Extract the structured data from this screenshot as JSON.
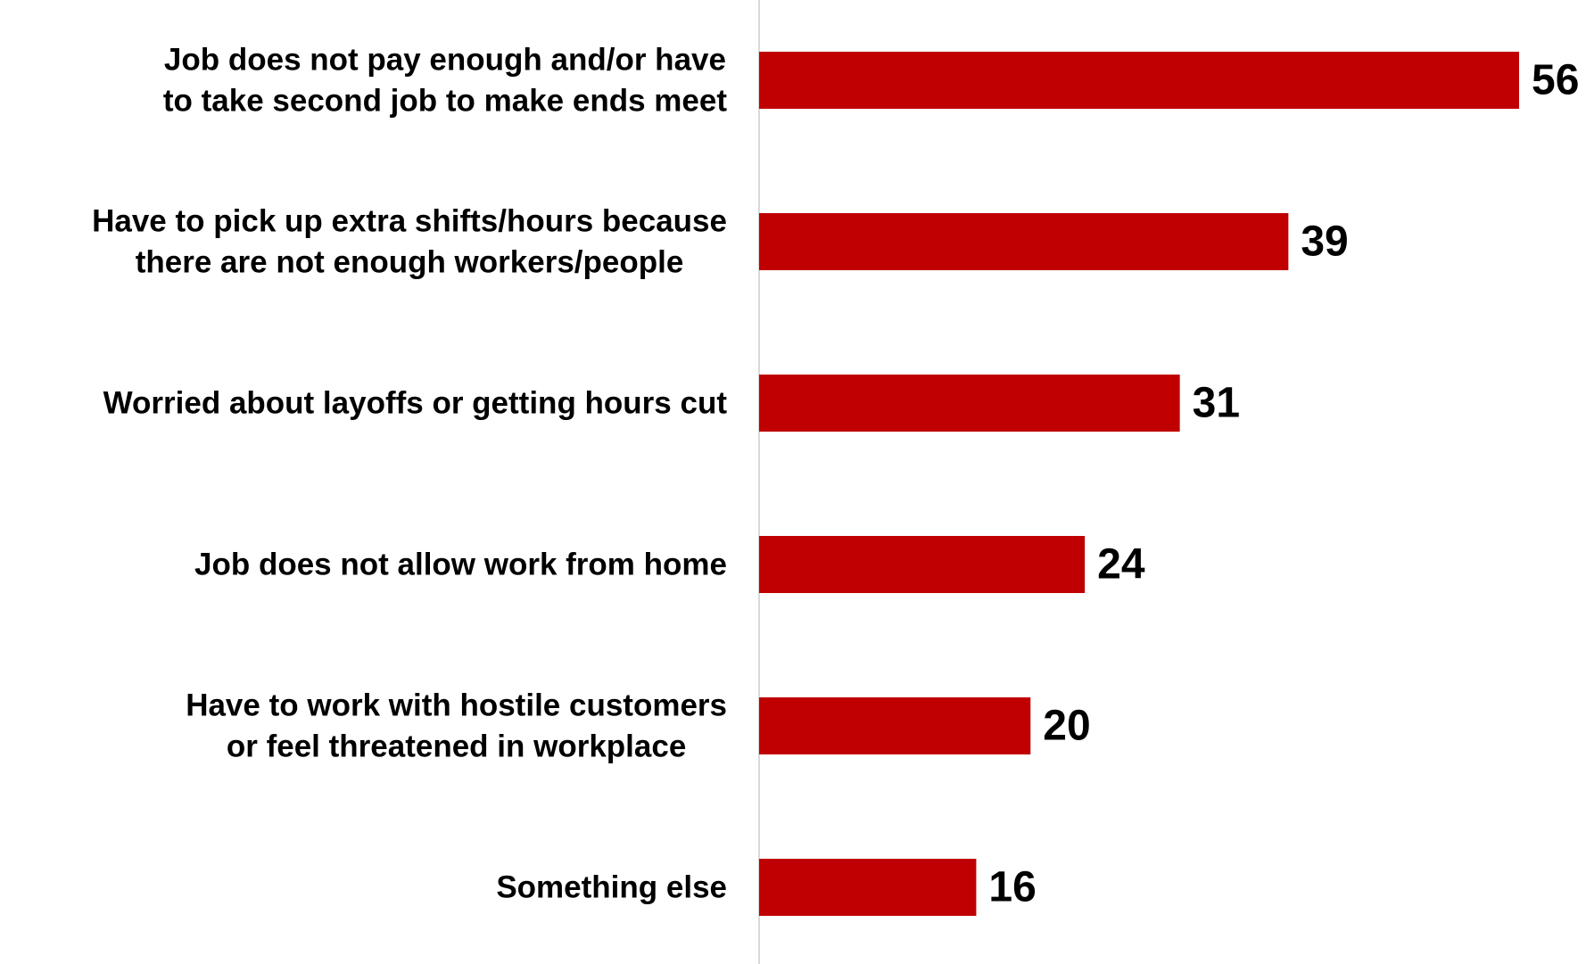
{
  "chart_data": {
    "type": "bar",
    "orientation": "horizontal",
    "title": "",
    "xlabel": "",
    "ylabel": "",
    "categories": [
      [
        "Job does not pay enough and/or have",
        "to take second job to make ends meet"
      ],
      [
        "Have to pick up extra shifts/hours because",
        "there are not enough workers/people"
      ],
      [
        "Worried about layoffs or getting hours cut"
      ],
      [
        "Job does not allow work from home"
      ],
      [
        "Have to work with hostile customers",
        "or feel threatened in workplace"
      ],
      [
        "Something else"
      ]
    ],
    "values": [
      56,
      39,
      31,
      24,
      20,
      16
    ],
    "xlim": [
      0,
      56
    ],
    "grid": false,
    "legend": "none",
    "data_labels": true,
    "colors": {
      "bar": "#C00000",
      "axis": "#D9D9D9",
      "text": "#000000"
    }
  }
}
